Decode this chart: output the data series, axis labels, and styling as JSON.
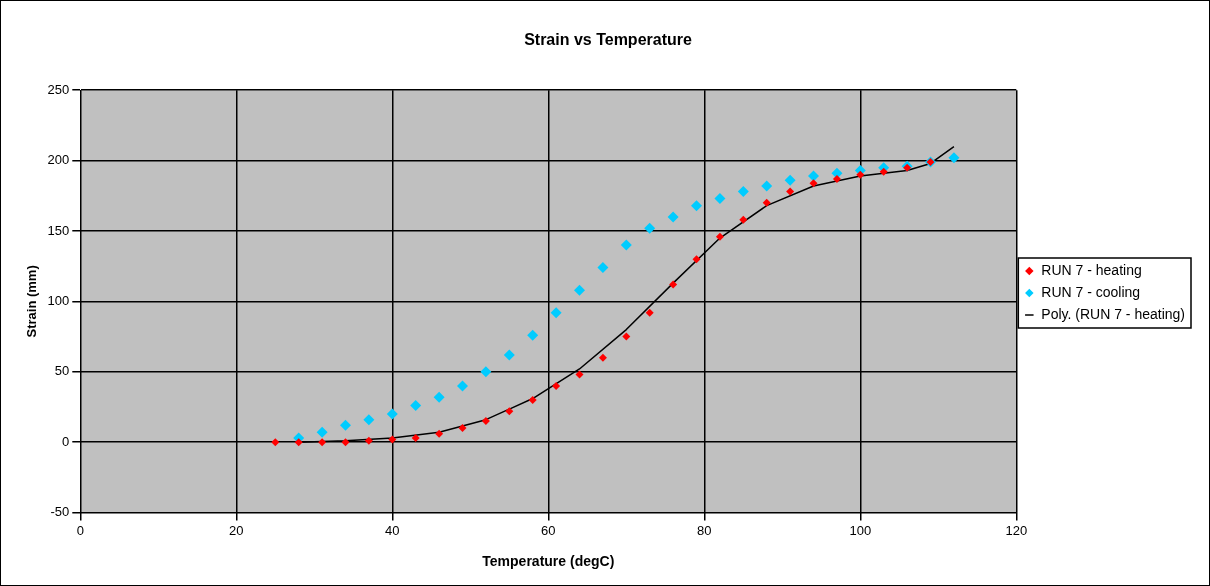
{
  "chart_data": {
    "type": "scatter",
    "title": "Strain vs Temperature",
    "xlabel": "Temperature (degC)",
    "ylabel": "Strain (mm)",
    "xlim": [
      0,
      120
    ],
    "xticks": [
      0,
      20,
      40,
      60,
      80,
      100,
      120
    ],
    "ylim": [
      -50,
      250
    ],
    "yticks": [
      -50,
      0,
      50,
      100,
      150,
      200,
      250
    ],
    "grid": true,
    "legend": "right",
    "marker": "diamond",
    "series": [
      {
        "name": "RUN 7 - heating",
        "color": "#ff0000",
        "x": [
          25,
          28,
          31,
          34,
          37,
          40,
          43,
          46,
          49,
          52,
          55,
          58,
          61,
          64,
          67,
          70,
          73,
          76,
          79,
          82,
          85,
          88,
          91,
          94,
          97,
          100,
          103,
          106,
          109
        ],
        "values": [
          0,
          0,
          0,
          0,
          1,
          2,
          3,
          6,
          10,
          15,
          22,
          30,
          40,
          48,
          60,
          75,
          92,
          112,
          130,
          146,
          158,
          170,
          178,
          184,
          187,
          190,
          192,
          195,
          199
        ]
      },
      {
        "name": "RUN 7 - cooling",
        "color": "#00ccff",
        "x": [
          28,
          31,
          34,
          37,
          40,
          43,
          46,
          49,
          52,
          55,
          58,
          61,
          64,
          67,
          70,
          73,
          76,
          79,
          82,
          85,
          88,
          91,
          94,
          97,
          100,
          103,
          106,
          109,
          112
        ],
        "values": [
          3,
          7,
          12,
          16,
          20,
          26,
          32,
          40,
          50,
          62,
          76,
          92,
          108,
          124,
          140,
          152,
          160,
          168,
          173,
          178,
          182,
          186,
          189,
          191,
          193,
          195,
          196,
          199,
          202
        ]
      },
      {
        "name": "Poly. (RUN 7 - heating)",
        "type": "line",
        "marker": "none",
        "color": "#000000",
        "x": [
          28,
          34,
          40,
          46,
          52,
          58,
          64,
          70,
          76,
          82,
          88,
          94,
          100,
          106,
          109,
          112
        ],
        "values": [
          0,
          1,
          3,
          7,
          16,
          31,
          52,
          80,
          113,
          145,
          168,
          182,
          189,
          193,
          198,
          210
        ]
      }
    ]
  }
}
